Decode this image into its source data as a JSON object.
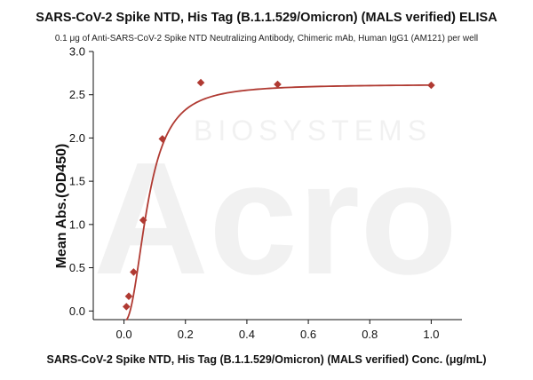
{
  "watermark": {
    "brand": "Acro",
    "tagline": "BIOSYSTEMS"
  },
  "chart_data": {
    "type": "scatter",
    "title": "SARS-CoV-2 Spike NTD, His Tag (B.1.1.529/Omicron) (MALS verified) ELISA",
    "subtitle": "0.1 μg of Anti-SARS-CoV-2 Spike NTD Neutralizing Antibody, Chimeric mAb, Human IgG1 (AM121) per well",
    "xlabel": "SARS-CoV-2 Spike NTD, His Tag (B.1.1.529/Omicron) (MALS verified) Conc. (μg/mL)",
    "ylabel": "Mean Abs.(OD450)",
    "xlim": [
      -0.1,
      1.1
    ],
    "ylim": [
      -0.1,
      3.0
    ],
    "xticks": [
      0.0,
      0.2,
      0.4,
      0.6,
      0.8,
      1.0
    ],
    "xtick_labels": [
      "0.0",
      "0.2",
      "0.4",
      "0.6",
      "0.8",
      "1.0"
    ],
    "yticks": [
      0.0,
      0.5,
      1.0,
      1.5,
      2.0,
      2.5,
      3.0
    ],
    "ytick_labels": [
      "0.0",
      "0.5",
      "1.0",
      "1.5",
      "2.0",
      "2.5",
      "3.0"
    ],
    "grid": false,
    "legend": "none",
    "color": "#B03A32",
    "series": [
      {
        "points": [
          {
            "x": 0.0078,
            "y": 0.05
          },
          {
            "x": 0.0156,
            "y": 0.17
          },
          {
            "x": 0.0313,
            "y": 0.45
          },
          {
            "x": 0.0625,
            "y": 1.05
          },
          {
            "x": 0.125,
            "y": 1.99
          },
          {
            "x": 0.25,
            "y": 2.64
          },
          {
            "x": 0.5,
            "y": 2.62
          },
          {
            "x": 1.0,
            "y": 2.61
          }
        ],
        "fit": {
          "model": "4PL",
          "bottom": -0.12,
          "top": 2.62,
          "ec50": 0.078,
          "hill": 2.25
        }
      }
    ]
  }
}
